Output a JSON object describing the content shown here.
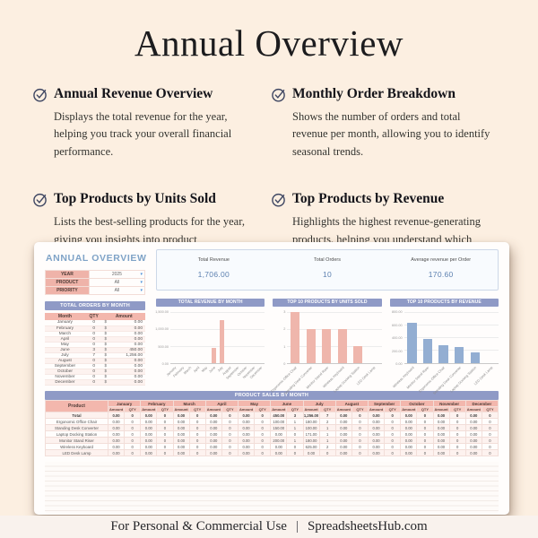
{
  "page": {
    "title": "Annual Overview",
    "footer_left": "For Personal & Commercial Use",
    "footer_sep": "|",
    "footer_right": "SpreadsheetsHub.com"
  },
  "features": [
    {
      "title": "Annual Revenue Overview",
      "description": "Displays the total revenue for the year, helping you track your overall financial performance."
    },
    {
      "title": "Monthly Order Breakdown",
      "description": "Shows the number of orders and total revenue per month, allowing you to identify seasonal trends."
    },
    {
      "title": "Top Products by Units Sold",
      "description": "Lists the best-selling products for the year, giving you insights into product performance."
    },
    {
      "title": "Top Products by Revenue",
      "description": "Highlights the highest revenue-generating products, helping you understand which products bring in the most income"
    }
  ],
  "colors": {
    "page_background": "#fcefe1",
    "accent_purple": "#8f9ac6",
    "accent_pink": "#f3b7ad",
    "bar_pink": "#efb6ac",
    "bar_blue": "#93aed2",
    "kpi_blue": "#5d81b0",
    "check_icon_navy": "#3e4662"
  },
  "spreadsheet": {
    "title": "ANNUAL OVERVIEW",
    "filters": [
      {
        "label": "YEAR",
        "value": "2025"
      },
      {
        "label": "PRODUCT",
        "value": "All"
      },
      {
        "label": "PRIORITY",
        "value": "All"
      }
    ],
    "kpis": [
      {
        "label": "Total Revenue",
        "value": "1,706.00"
      },
      {
        "label": "Total Orders",
        "value": "10"
      },
      {
        "label": "Average revenue per Order",
        "value": "170.60"
      }
    ],
    "orders_by_month": {
      "header_title": "TOTAL ORDERS BY MONTH",
      "columns": [
        "Month",
        "QTY",
        "Amount"
      ],
      "currency_symbol": "$",
      "rows": [
        [
          "January",
          "0",
          "0.00"
        ],
        [
          "February",
          "0",
          "0.00"
        ],
        [
          "March",
          "0",
          "0.00"
        ],
        [
          "April",
          "0",
          "0.00"
        ],
        [
          "May",
          "0",
          "0.00"
        ],
        [
          "June",
          "3",
          "450.00"
        ],
        [
          "July",
          "7",
          "1,256.00"
        ],
        [
          "August",
          "0",
          "0.00"
        ],
        [
          "September",
          "0",
          "0.00"
        ],
        [
          "October",
          "0",
          "0.00"
        ],
        [
          "November",
          "0",
          "0.00"
        ],
        [
          "December",
          "0",
          "0.00"
        ]
      ]
    },
    "product_sales": {
      "header_title": "PRODUCT SALES BY MONTH",
      "product_column": "Product",
      "months": [
        "January",
        "February",
        "March",
        "April",
        "May",
        "June",
        "July",
        "August",
        "September",
        "October",
        "November",
        "December"
      ],
      "sub_columns": [
        "Amount",
        "QTY"
      ],
      "rows": [
        {
          "product": "Total",
          "is_total": true,
          "cells": [
            [
              "0.00",
              "0"
            ],
            [
              "0.00",
              "0"
            ],
            [
              "0.00",
              "0"
            ],
            [
              "0.00",
              "0"
            ],
            [
              "0.00",
              "0"
            ],
            [
              "450.00",
              "3"
            ],
            [
              "1,256.00",
              "7"
            ],
            [
              "0.00",
              "0"
            ],
            [
              "0.00",
              "0"
            ],
            [
              "0.00",
              "0"
            ],
            [
              "0.00",
              "0"
            ],
            [
              "0.00",
              "0"
            ]
          ]
        },
        {
          "product": "Ergonomic Office Chair",
          "is_total": false,
          "cells": [
            [
              "0.00",
              "0"
            ],
            [
              "0.00",
              "0"
            ],
            [
              "0.00",
              "0"
            ],
            [
              "0.00",
              "0"
            ],
            [
              "0.00",
              "0"
            ],
            [
              "100.00",
              "1"
            ],
            [
              "180.00",
              "2"
            ],
            [
              "0.00",
              "0"
            ],
            [
              "0.00",
              "0"
            ],
            [
              "0.00",
              "0"
            ],
            [
              "0.00",
              "0"
            ],
            [
              "0.00",
              "0"
            ]
          ]
        },
        {
          "product": "Standing Desk Converter",
          "is_total": false,
          "cells": [
            [
              "0.00",
              "0"
            ],
            [
              "0.00",
              "0"
            ],
            [
              "0.00",
              "0"
            ],
            [
              "0.00",
              "0"
            ],
            [
              "0.00",
              "0"
            ],
            [
              "150.00",
              "1"
            ],
            [
              "100.00",
              "1"
            ],
            [
              "0.00",
              "0"
            ],
            [
              "0.00",
              "0"
            ],
            [
              "0.00",
              "0"
            ],
            [
              "0.00",
              "0"
            ],
            [
              "0.00",
              "0"
            ]
          ]
        },
        {
          "product": "Laptop Docking Station",
          "is_total": false,
          "cells": [
            [
              "0.00",
              "0"
            ],
            [
              "0.00",
              "0"
            ],
            [
              "0.00",
              "0"
            ],
            [
              "0.00",
              "0"
            ],
            [
              "0.00",
              "0"
            ],
            [
              "0.00",
              "0"
            ],
            [
              "171.00",
              "1"
            ],
            [
              "0.00",
              "0"
            ],
            [
              "0.00",
              "0"
            ],
            [
              "0.00",
              "0"
            ],
            [
              "0.00",
              "0"
            ],
            [
              "0.00",
              "0"
            ]
          ]
        },
        {
          "product": "Monitor Stand Riser",
          "is_total": false,
          "cells": [
            [
              "0.00",
              "0"
            ],
            [
              "0.00",
              "0"
            ],
            [
              "0.00",
              "0"
            ],
            [
              "0.00",
              "0"
            ],
            [
              "0.00",
              "0"
            ],
            [
              "200.00",
              "1"
            ],
            [
              "180.00",
              "1"
            ],
            [
              "0.00",
              "0"
            ],
            [
              "0.00",
              "0"
            ],
            [
              "0.00",
              "0"
            ],
            [
              "0.00",
              "0"
            ],
            [
              "0.00",
              "0"
            ]
          ]
        },
        {
          "product": "Wireless Keyboard",
          "is_total": false,
          "cells": [
            [
              "0.00",
              "0"
            ],
            [
              "0.00",
              "0"
            ],
            [
              "0.00",
              "0"
            ],
            [
              "0.00",
              "0"
            ],
            [
              "0.00",
              "0"
            ],
            [
              "0.00",
              "0"
            ],
            [
              "625.00",
              "2"
            ],
            [
              "0.00",
              "0"
            ],
            [
              "0.00",
              "0"
            ],
            [
              "0.00",
              "0"
            ],
            [
              "0.00",
              "0"
            ],
            [
              "0.00",
              "0"
            ]
          ]
        },
        {
          "product": "LED Desk Lamp",
          "is_total": false,
          "cells": [
            [
              "0.00",
              "0"
            ],
            [
              "0.00",
              "0"
            ],
            [
              "0.00",
              "0"
            ],
            [
              "0.00",
              "0"
            ],
            [
              "0.00",
              "0"
            ],
            [
              "0.00",
              "0"
            ],
            [
              "0.00",
              "0"
            ],
            [
              "0.00",
              "0"
            ],
            [
              "0.00",
              "0"
            ],
            [
              "0.00",
              "0"
            ],
            [
              "0.00",
              "0"
            ],
            [
              "0.00",
              "0"
            ]
          ]
        }
      ]
    }
  },
  "chart_data": [
    {
      "type": "bar",
      "title": "TOTAL REVENUE BY MONTH",
      "categories": [
        "January",
        "February",
        "March",
        "April",
        "May",
        "June",
        "July",
        "August",
        "September",
        "October",
        "November",
        "December"
      ],
      "values": [
        0,
        0,
        0,
        0,
        0,
        450,
        1256,
        0,
        0,
        0,
        0,
        0
      ],
      "xlabel": "",
      "ylabel": "",
      "ylim": [
        0,
        1500
      ],
      "yticks": [
        "0.00",
        "500.00",
        "1,000.00",
        "1,500.00"
      ],
      "bar_color": "#efb6ac",
      "grid": true,
      "legend": false
    },
    {
      "type": "bar",
      "title": "TOP 10 PRODUCTS BY UNITS SOLD",
      "categories": [
        "Ergonomic Office Chair",
        "Standing Desk Converter",
        "Monitor Stand Riser",
        "Wireless Keyboard",
        "Laptop Docking Station",
        "LED Desk Lamp"
      ],
      "values": [
        3,
        2,
        2,
        2,
        1,
        0
      ],
      "xlabel": "",
      "ylabel": "",
      "ylim": [
        0,
        3
      ],
      "yticks": [
        "0",
        "1",
        "2",
        "3"
      ],
      "bar_color": "#efb6ac",
      "grid": true,
      "legend": false
    },
    {
      "type": "bar",
      "title": "TOP 10 PRODUCTS BY REVENUE",
      "categories": [
        "Wireless Keyboard",
        "Monitor Stand Riser",
        "Ergonomic Office Chair",
        "Standing Desk Converter",
        "Laptop Docking Station",
        "LED Desk Lamp"
      ],
      "values": [
        625,
        380,
        280,
        250,
        171,
        0
      ],
      "xlabel": "",
      "ylabel": "",
      "ylim": [
        0,
        800
      ],
      "yticks": [
        "0.00",
        "200.00",
        "400.00",
        "600.00",
        "800.00"
      ],
      "bar_color": "#93aed2",
      "grid": true,
      "legend": false
    }
  ]
}
